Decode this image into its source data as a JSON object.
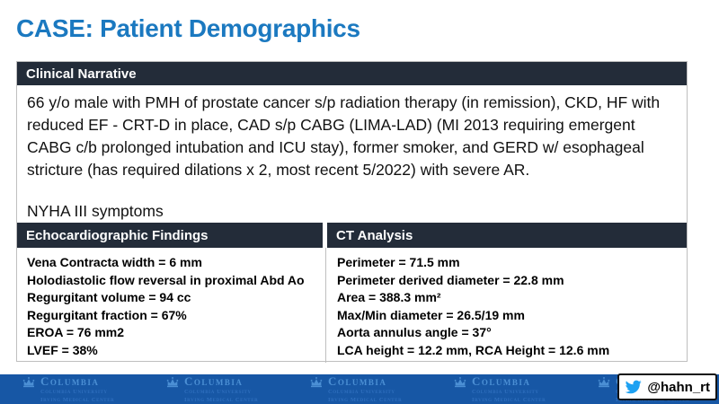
{
  "slide": {
    "title": "CASE: Patient Demographics"
  },
  "clinical_narrative": {
    "header": "Clinical Narrative",
    "paragraph": "66 y/o male with PMH of prostate cancer s/p radiation therapy (in remission), CKD, HF with reduced EF  - CRT-D in place, CAD s/p CABG (LIMA-LAD) (MI 2013 requiring emergent CABG c/b prolonged intubation and ICU stay), former smoker, and GERD w/ esophageal stricture (has required dilations x 2, most recent 5/2022) with severe AR.",
    "symptoms": "NYHA III symptoms"
  },
  "echo_findings": {
    "header": "Echocardiographic Findings",
    "items": [
      "Vena Contracta width = 6 mm",
      "Holodiastolic flow reversal in proximal Abd Ao",
      "Regurgitant volume = 94 cc",
      "Regurgitant fraction = 67%",
      "EROA = 76 mm2",
      "LVEF = 38%"
    ]
  },
  "ct_analysis": {
    "header": "CT Analysis",
    "items": [
      "Perimeter = 71.5 mm",
      "Perimeter derived diameter = 22.8 mm",
      "Area = 388.3 mm²",
      "Max/Min diameter = 26.5/19 mm",
      "Aorta annulus angle = 37°",
      "LCA height = 12.2 mm, RCA Height = 12.6 mm"
    ]
  },
  "footer": {
    "logo": {
      "wordmark": "Columbia",
      "sub_line1": "Columbia University",
      "sub_line2": "Irving Medical Center"
    },
    "twitter_handle": "@hahn_rt"
  },
  "colors": {
    "title_blue": "#1B79C0",
    "header_dark": "#232C39",
    "footer_blue": "#1757A5",
    "logo_light_blue": "#4B8FD4",
    "twitter_blue": "#1DA1F2",
    "table_border": "#BFBFBF"
  }
}
